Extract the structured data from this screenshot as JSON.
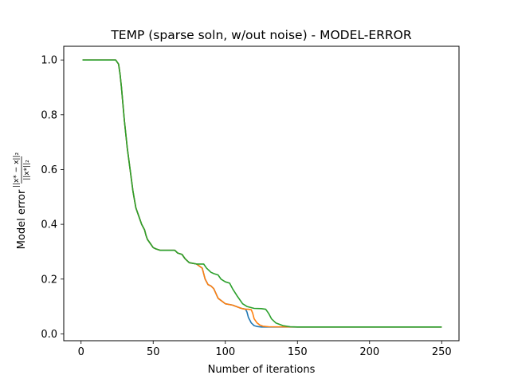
{
  "chart_data": {
    "type": "line",
    "title": "TEMP (sparse soln, w/out noise) - MODEL-ERROR",
    "xlabel": "Number of iterations",
    "ylabel_text": "Model error",
    "ylabel_numerator": "||x* − x||₂",
    "ylabel_denominator": "||x*||₂",
    "xlim": [
      -12,
      262
    ],
    "ylim": [
      -0.025,
      1.05
    ],
    "xticks": [
      0,
      50,
      100,
      150,
      200,
      250
    ],
    "yticks": [
      0.0,
      0.2,
      0.4,
      0.6,
      0.8,
      1.0
    ],
    "xtick_labels": [
      "0",
      "50",
      "100",
      "150",
      "200",
      "250"
    ],
    "ytick_labels": [
      "0.0",
      "0.2",
      "0.4",
      "0.6",
      "0.8",
      "1.0"
    ],
    "grid": false,
    "legend": false,
    "series": [
      {
        "color": "#1f77b4",
        "x": [
          1,
          10,
          20,
          24,
          26,
          27,
          28,
          29,
          30,
          31,
          32,
          33,
          34,
          35,
          36,
          37,
          38,
          40,
          42,
          44,
          45,
          46,
          48,
          50,
          52,
          55,
          60,
          65,
          67,
          70,
          72,
          75,
          80,
          84,
          86,
          88,
          90,
          92,
          95,
          100,
          105,
          110,
          112,
          114,
          115,
          116,
          117,
          118,
          119,
          120,
          122,
          125,
          130,
          150,
          200,
          250
        ],
        "y": [
          1.0,
          1.0,
          1.0,
          1.0,
          0.985,
          0.95,
          0.9,
          0.84,
          0.78,
          0.73,
          0.68,
          0.64,
          0.6,
          0.56,
          0.52,
          0.49,
          0.46,
          0.43,
          0.4,
          0.38,
          0.36,
          0.345,
          0.33,
          0.315,
          0.31,
          0.305,
          0.305,
          0.305,
          0.295,
          0.29,
          0.275,
          0.26,
          0.255,
          0.24,
          0.2,
          0.18,
          0.175,
          0.165,
          0.13,
          0.11,
          0.105,
          0.095,
          0.092,
          0.09,
          0.08,
          0.06,
          0.05,
          0.04,
          0.035,
          0.03,
          0.027,
          0.025,
          0.025,
          0.025,
          0.025,
          0.025
        ]
      },
      {
        "color": "#ff7f0e",
        "x": [
          1,
          10,
          20,
          24,
          26,
          27,
          28,
          29,
          30,
          31,
          32,
          33,
          34,
          35,
          36,
          37,
          38,
          40,
          42,
          44,
          45,
          46,
          48,
          50,
          52,
          55,
          60,
          65,
          67,
          70,
          72,
          75,
          80,
          84,
          86,
          88,
          90,
          92,
          95,
          100,
          105,
          110,
          112,
          114,
          116,
          118,
          119,
          120,
          122,
          124,
          126,
          130,
          150,
          200,
          250
        ],
        "y": [
          1.0,
          1.0,
          1.0,
          1.0,
          0.985,
          0.95,
          0.9,
          0.84,
          0.78,
          0.73,
          0.68,
          0.64,
          0.6,
          0.56,
          0.52,
          0.49,
          0.46,
          0.43,
          0.4,
          0.38,
          0.36,
          0.345,
          0.33,
          0.315,
          0.31,
          0.305,
          0.305,
          0.305,
          0.295,
          0.29,
          0.275,
          0.26,
          0.255,
          0.24,
          0.2,
          0.18,
          0.175,
          0.165,
          0.13,
          0.11,
          0.105,
          0.095,
          0.092,
          0.09,
          0.09,
          0.088,
          0.075,
          0.055,
          0.04,
          0.032,
          0.028,
          0.026,
          0.025,
          0.025,
          0.025
        ]
      },
      {
        "color": "#2ca02c",
        "x": [
          1,
          10,
          20,
          24,
          26,
          27,
          28,
          29,
          30,
          31,
          32,
          33,
          34,
          35,
          36,
          37,
          38,
          40,
          42,
          44,
          45,
          46,
          48,
          50,
          52,
          55,
          60,
          65,
          67,
          70,
          72,
          75,
          80,
          85,
          87,
          90,
          92,
          95,
          97,
          100,
          103,
          105,
          108,
          112,
          115,
          120,
          125,
          128,
          130,
          132,
          135,
          140,
          145,
          150,
          200,
          250
        ],
        "y": [
          1.0,
          1.0,
          1.0,
          1.0,
          0.985,
          0.95,
          0.9,
          0.84,
          0.78,
          0.73,
          0.68,
          0.64,
          0.6,
          0.56,
          0.52,
          0.49,
          0.46,
          0.43,
          0.4,
          0.38,
          0.36,
          0.345,
          0.33,
          0.315,
          0.31,
          0.305,
          0.305,
          0.305,
          0.295,
          0.29,
          0.275,
          0.26,
          0.255,
          0.255,
          0.24,
          0.225,
          0.22,
          0.215,
          0.2,
          0.19,
          0.185,
          0.165,
          0.14,
          0.11,
          0.1,
          0.093,
          0.092,
          0.09,
          0.075,
          0.055,
          0.04,
          0.03,
          0.026,
          0.025,
          0.025,
          0.025
        ]
      }
    ]
  }
}
